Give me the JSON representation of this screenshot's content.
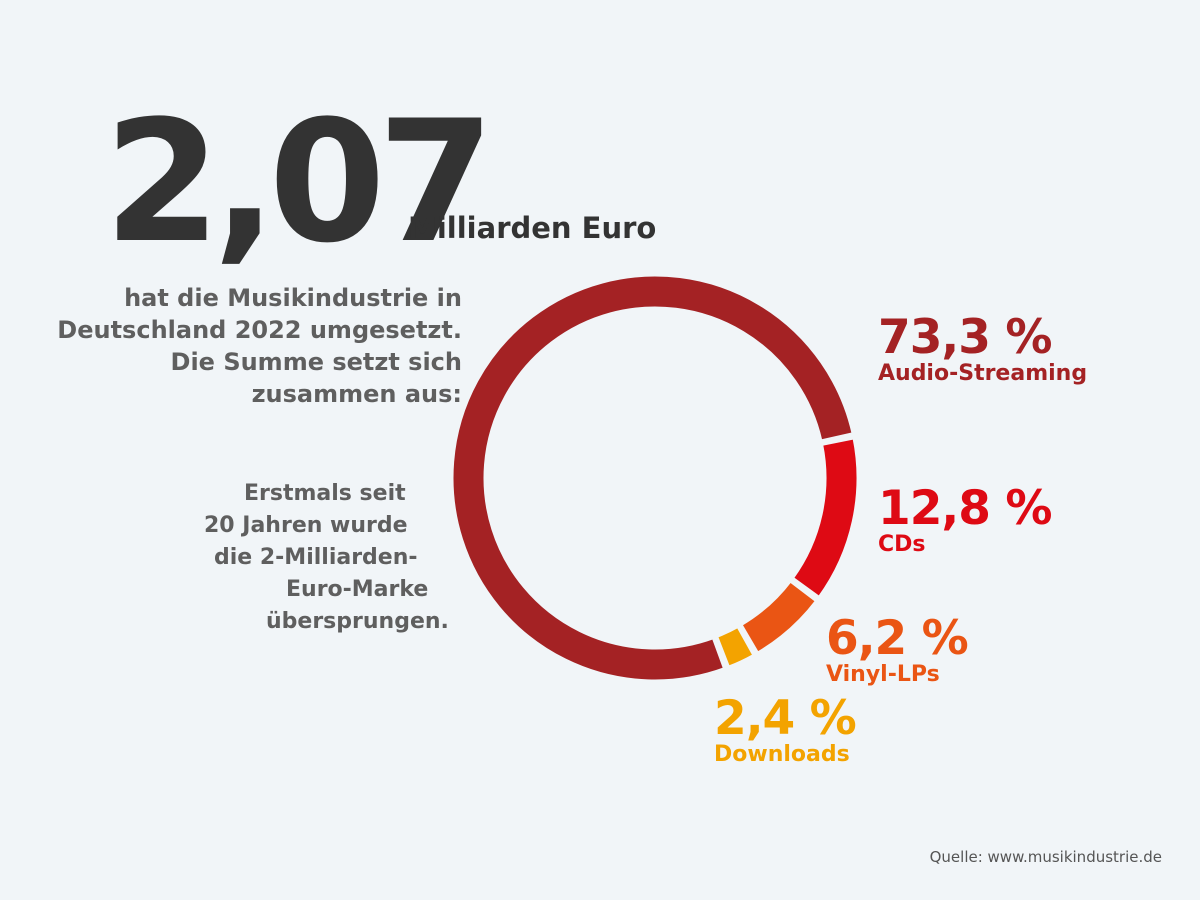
{
  "headline": {
    "number": "2,07",
    "unit": "Milliarden Euro"
  },
  "intro_lines": [
    "hat die Musikindustrie in",
    "Deutschland 2022 umgesetzt.",
    "Die Summe setzt sich",
    "zusammen aus:"
  ],
  "note_lines": [
    "Erstmals seit",
    "20 Jahren wurde",
    "die 2-Milliarden-",
    "Euro-Marke",
    "übersprungen."
  ],
  "source": "Quelle: www.musikindustrie.de",
  "chart_data": {
    "type": "pie",
    "style": "donut",
    "unit": "%",
    "slices": [
      {
        "label": "Audio-Streaming",
        "value": 73.3,
        "display": "73,3 %",
        "color": "#a42224"
      },
      {
        "label": "CDs",
        "value": 12.8,
        "display": "12,8 %",
        "color": "#de0a14"
      },
      {
        "label": "Vinyl-LPs",
        "value": 6.2,
        "display": "6,2 %",
        "color": "#ea5514"
      },
      {
        "label": "Downloads",
        "value": 2.4,
        "display": "2,4 %",
        "color": "#f3a300"
      }
    ]
  }
}
